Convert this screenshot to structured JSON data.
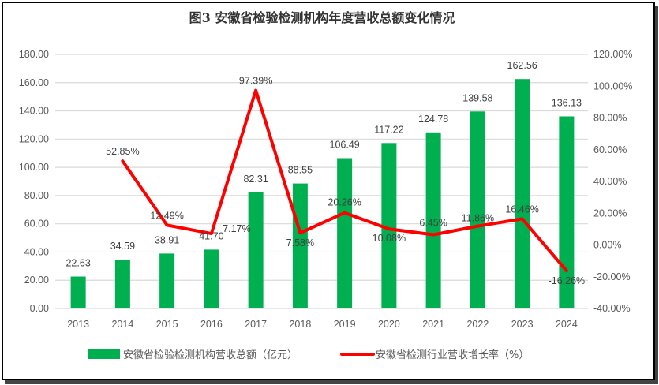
{
  "chart_data": {
    "type": "bar+line",
    "title": "图3  安徽省检验检测机构年度营收总额变化情况",
    "categories": [
      "2013",
      "2014",
      "2015",
      "2016",
      "2017",
      "2018",
      "2019",
      "2020",
      "2021",
      "2022",
      "2023",
      "2024"
    ],
    "series": [
      {
        "name": "安徽省检验检测机构营收总额（亿元）",
        "type": "bar",
        "axis": "left",
        "color": "#00B050",
        "values": [
          22.63,
          34.59,
          38.91,
          41.7,
          82.31,
          88.55,
          106.49,
          117.22,
          124.78,
          139.58,
          162.56,
          136.13
        ],
        "labels": [
          "22.63",
          "34.59",
          "38.91",
          "41.70",
          "82.31",
          "88.55",
          "106.49",
          "117.22",
          "124.78",
          "139.58",
          "162.56",
          "136.13"
        ]
      },
      {
        "name": "安徽省检测行业营收增长率（%）",
        "type": "line",
        "axis": "right",
        "color": "#FF0000",
        "values": [
          null,
          52.85,
          12.49,
          7.17,
          97.39,
          7.58,
          20.26,
          10.08,
          6.45,
          11.86,
          16.46,
          -16.26
        ],
        "labels": [
          "",
          "52.85%",
          "12.49%",
          "7.17%",
          "97.39%",
          "7.58%",
          "20.26%",
          "10.08%",
          "6.45%",
          "11.86%",
          "16.46%",
          "-16.26%"
        ]
      }
    ],
    "left_axis": {
      "ylim": [
        0,
        180
      ],
      "ticks": [
        "0.00",
        "20.00",
        "40.00",
        "60.00",
        "80.00",
        "100.00",
        "120.00",
        "140.00",
        "160.00",
        "180.00"
      ]
    },
    "right_axis": {
      "ylim": [
        -40,
        120
      ],
      "ticks": [
        "-40.00%",
        "-20.00%",
        "0.00%",
        "20.00%",
        "40.00%",
        "60.00%",
        "80.00%",
        "100.00%",
        "120.00%"
      ]
    },
    "grid": true,
    "legend": "bottom"
  }
}
